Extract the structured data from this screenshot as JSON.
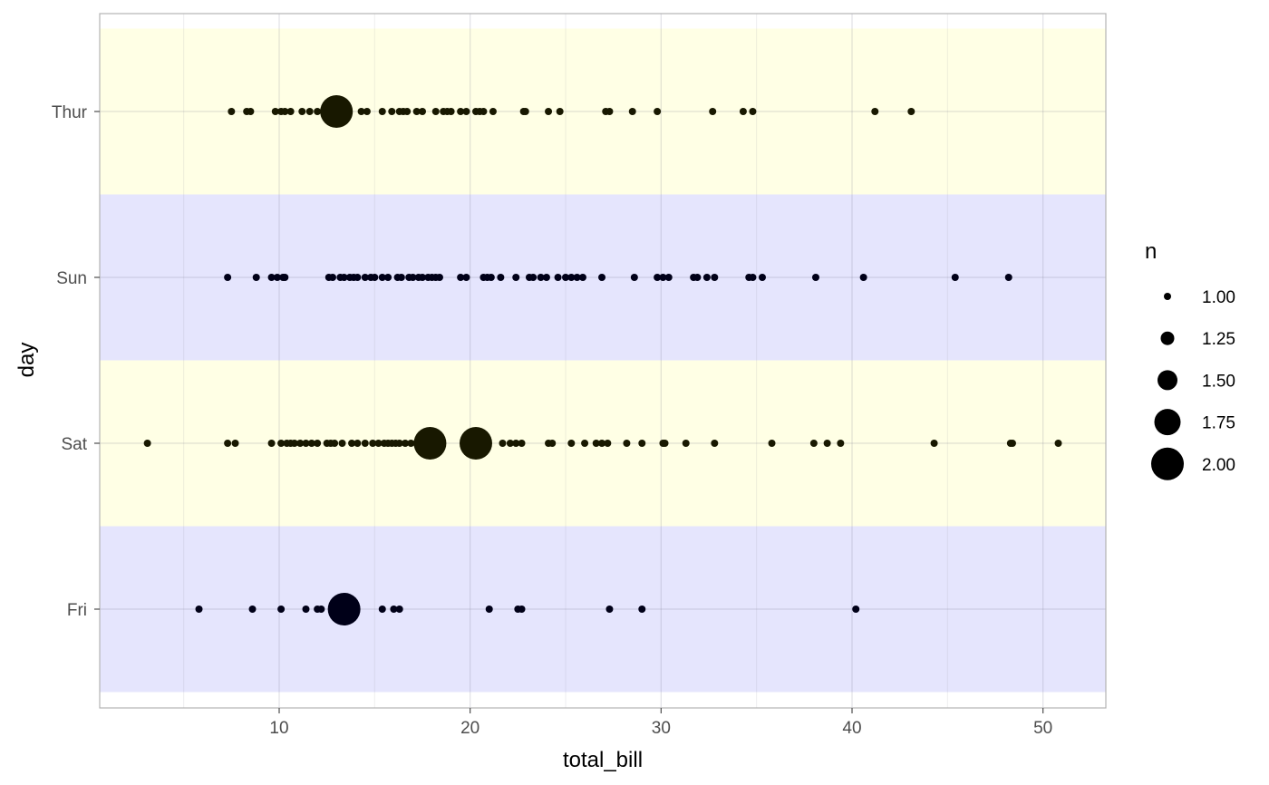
{
  "chart_data": {
    "type": "scatter",
    "xlabel": "total_bill",
    "ylabel": "day",
    "xlim": [
      0.5,
      53.3
    ],
    "x_ticks": [
      10,
      20,
      30,
      40,
      50
    ],
    "x_minor_ticks": [
      5,
      15,
      25,
      35,
      45
    ],
    "categories": [
      "Fri",
      "Sat",
      "Sun",
      "Thur"
    ],
    "band_colors": {
      "Thur": "#ffffe5",
      "Sun": "#e5e5fd",
      "Sat": "#ffffe5",
      "Fri": "#e5e5fd"
    },
    "point_colors": {
      "Thur": "#181800",
      "Sun": "#000018",
      "Sat": "#181800",
      "Fri": "#000018"
    },
    "grid": true,
    "legend": {
      "title": "n",
      "position": "right",
      "entries": [
        {
          "label": "1.00",
          "value": 1.0
        },
        {
          "label": "1.25",
          "value": 1.25
        },
        {
          "label": "1.50",
          "value": 1.5
        },
        {
          "label": "1.75",
          "value": 1.75
        },
        {
          "label": "2.00",
          "value": 2.0
        }
      ]
    },
    "series": [
      {
        "day": "Thur",
        "points": [
          {
            "x": 7.5,
            "n": 1
          },
          {
            "x": 8.3,
            "n": 1
          },
          {
            "x": 8.5,
            "n": 1
          },
          {
            "x": 9.8,
            "n": 1
          },
          {
            "x": 10.1,
            "n": 1
          },
          {
            "x": 10.3,
            "n": 1
          },
          {
            "x": 10.6,
            "n": 1
          },
          {
            "x": 11.2,
            "n": 1
          },
          {
            "x": 11.6,
            "n": 1
          },
          {
            "x": 12.0,
            "n": 1
          },
          {
            "x": 12.5,
            "n": 1
          },
          {
            "x": 13.0,
            "n": 2
          },
          {
            "x": 14.3,
            "n": 1
          },
          {
            "x": 14.6,
            "n": 1
          },
          {
            "x": 15.4,
            "n": 1
          },
          {
            "x": 15.9,
            "n": 1
          },
          {
            "x": 16.3,
            "n": 1
          },
          {
            "x": 16.5,
            "n": 1
          },
          {
            "x": 16.7,
            "n": 1
          },
          {
            "x": 17.2,
            "n": 1
          },
          {
            "x": 17.5,
            "n": 1
          },
          {
            "x": 18.2,
            "n": 1
          },
          {
            "x": 18.6,
            "n": 1
          },
          {
            "x": 18.8,
            "n": 1
          },
          {
            "x": 19.0,
            "n": 1
          },
          {
            "x": 19.5,
            "n": 1
          },
          {
            "x": 19.8,
            "n": 1
          },
          {
            "x": 20.3,
            "n": 1
          },
          {
            "x": 20.5,
            "n": 1
          },
          {
            "x": 20.7,
            "n": 1
          },
          {
            "x": 21.2,
            "n": 1
          },
          {
            "x": 22.8,
            "n": 1
          },
          {
            "x": 22.9,
            "n": 1
          },
          {
            "x": 24.1,
            "n": 1
          },
          {
            "x": 24.7,
            "n": 1
          },
          {
            "x": 27.1,
            "n": 1
          },
          {
            "x": 27.3,
            "n": 1
          },
          {
            "x": 28.5,
            "n": 1
          },
          {
            "x": 29.8,
            "n": 1
          },
          {
            "x": 32.7,
            "n": 1
          },
          {
            "x": 34.3,
            "n": 1
          },
          {
            "x": 34.8,
            "n": 1
          },
          {
            "x": 41.2,
            "n": 1
          },
          {
            "x": 43.1,
            "n": 1
          }
        ]
      },
      {
        "day": "Sun",
        "points": [
          {
            "x": 7.3,
            "n": 1
          },
          {
            "x": 8.8,
            "n": 1
          },
          {
            "x": 9.6,
            "n": 1
          },
          {
            "x": 9.9,
            "n": 1
          },
          {
            "x": 10.2,
            "n": 1
          },
          {
            "x": 10.3,
            "n": 1
          },
          {
            "x": 12.6,
            "n": 1
          },
          {
            "x": 12.8,
            "n": 1
          },
          {
            "x": 13.2,
            "n": 1
          },
          {
            "x": 13.4,
            "n": 1
          },
          {
            "x": 13.7,
            "n": 1
          },
          {
            "x": 13.9,
            "n": 1
          },
          {
            "x": 14.1,
            "n": 1
          },
          {
            "x": 14.5,
            "n": 1
          },
          {
            "x": 14.8,
            "n": 1
          },
          {
            "x": 15.0,
            "n": 1
          },
          {
            "x": 15.4,
            "n": 1
          },
          {
            "x": 15.7,
            "n": 1
          },
          {
            "x": 16.2,
            "n": 1
          },
          {
            "x": 16.4,
            "n": 1
          },
          {
            "x": 16.8,
            "n": 1
          },
          {
            "x": 17.0,
            "n": 1
          },
          {
            "x": 17.3,
            "n": 1
          },
          {
            "x": 17.5,
            "n": 1
          },
          {
            "x": 17.8,
            "n": 1
          },
          {
            "x": 18.0,
            "n": 1
          },
          {
            "x": 18.2,
            "n": 1
          },
          {
            "x": 18.4,
            "n": 1
          },
          {
            "x": 19.5,
            "n": 1
          },
          {
            "x": 19.8,
            "n": 1
          },
          {
            "x": 20.7,
            "n": 1
          },
          {
            "x": 20.9,
            "n": 1
          },
          {
            "x": 21.1,
            "n": 1
          },
          {
            "x": 21.6,
            "n": 1
          },
          {
            "x": 22.4,
            "n": 1
          },
          {
            "x": 23.1,
            "n": 1
          },
          {
            "x": 23.3,
            "n": 1
          },
          {
            "x": 23.7,
            "n": 1
          },
          {
            "x": 24.0,
            "n": 1
          },
          {
            "x": 24.6,
            "n": 1
          },
          {
            "x": 25.0,
            "n": 1
          },
          {
            "x": 25.3,
            "n": 1
          },
          {
            "x": 25.6,
            "n": 1
          },
          {
            "x": 25.9,
            "n": 1
          },
          {
            "x": 26.9,
            "n": 1
          },
          {
            "x": 28.6,
            "n": 1
          },
          {
            "x": 29.8,
            "n": 1
          },
          {
            "x": 30.1,
            "n": 1
          },
          {
            "x": 30.4,
            "n": 1
          },
          {
            "x": 31.7,
            "n": 1
          },
          {
            "x": 31.9,
            "n": 1
          },
          {
            "x": 32.4,
            "n": 1
          },
          {
            "x": 32.8,
            "n": 1
          },
          {
            "x": 34.6,
            "n": 1
          },
          {
            "x": 34.8,
            "n": 1
          },
          {
            "x": 35.3,
            "n": 1
          },
          {
            "x": 38.1,
            "n": 1
          },
          {
            "x": 40.6,
            "n": 1
          },
          {
            "x": 45.4,
            "n": 1
          },
          {
            "x": 48.2,
            "n": 1
          }
        ]
      },
      {
        "day": "Sat",
        "points": [
          {
            "x": 3.1,
            "n": 1
          },
          {
            "x": 7.3,
            "n": 1
          },
          {
            "x": 7.7,
            "n": 1
          },
          {
            "x": 9.6,
            "n": 1
          },
          {
            "x": 10.1,
            "n": 1
          },
          {
            "x": 10.4,
            "n": 1
          },
          {
            "x": 10.6,
            "n": 1
          },
          {
            "x": 10.8,
            "n": 1
          },
          {
            "x": 11.1,
            "n": 1
          },
          {
            "x": 11.4,
            "n": 1
          },
          {
            "x": 11.7,
            "n": 1
          },
          {
            "x": 12.0,
            "n": 1
          },
          {
            "x": 12.5,
            "n": 1
          },
          {
            "x": 12.7,
            "n": 1
          },
          {
            "x": 12.9,
            "n": 1
          },
          {
            "x": 13.3,
            "n": 1
          },
          {
            "x": 13.8,
            "n": 1
          },
          {
            "x": 14.1,
            "n": 1
          },
          {
            "x": 14.5,
            "n": 1
          },
          {
            "x": 14.9,
            "n": 1
          },
          {
            "x": 15.2,
            "n": 1
          },
          {
            "x": 15.5,
            "n": 1
          },
          {
            "x": 15.7,
            "n": 1
          },
          {
            "x": 15.9,
            "n": 1
          },
          {
            "x": 16.1,
            "n": 1
          },
          {
            "x": 16.3,
            "n": 1
          },
          {
            "x": 16.6,
            "n": 1
          },
          {
            "x": 16.9,
            "n": 1
          },
          {
            "x": 17.2,
            "n": 1
          },
          {
            "x": 17.5,
            "n": 1
          },
          {
            "x": 17.9,
            "n": 2
          },
          {
            "x": 18.3,
            "n": 1
          },
          {
            "x": 20.3,
            "n": 2
          },
          {
            "x": 21.7,
            "n": 1
          },
          {
            "x": 22.1,
            "n": 1
          },
          {
            "x": 22.4,
            "n": 1
          },
          {
            "x": 22.7,
            "n": 1
          },
          {
            "x": 24.1,
            "n": 1
          },
          {
            "x": 24.3,
            "n": 1
          },
          {
            "x": 25.3,
            "n": 1
          },
          {
            "x": 26.0,
            "n": 1
          },
          {
            "x": 26.6,
            "n": 1
          },
          {
            "x": 26.9,
            "n": 1
          },
          {
            "x": 27.2,
            "n": 1
          },
          {
            "x": 28.2,
            "n": 1
          },
          {
            "x": 29.0,
            "n": 1
          },
          {
            "x": 30.1,
            "n": 1
          },
          {
            "x": 30.2,
            "n": 1
          },
          {
            "x": 31.3,
            "n": 1
          },
          {
            "x": 32.8,
            "n": 1
          },
          {
            "x": 35.8,
            "n": 1
          },
          {
            "x": 38.0,
            "n": 1
          },
          {
            "x": 38.7,
            "n": 1
          },
          {
            "x": 39.4,
            "n": 1
          },
          {
            "x": 44.3,
            "n": 1
          },
          {
            "x": 48.3,
            "n": 1
          },
          {
            "x": 48.4,
            "n": 1
          },
          {
            "x": 50.8,
            "n": 1
          }
        ]
      },
      {
        "day": "Fri",
        "points": [
          {
            "x": 5.8,
            "n": 1
          },
          {
            "x": 8.6,
            "n": 1
          },
          {
            "x": 10.1,
            "n": 1
          },
          {
            "x": 11.4,
            "n": 1
          },
          {
            "x": 12.0,
            "n": 1
          },
          {
            "x": 12.2,
            "n": 1
          },
          {
            "x": 13.4,
            "n": 2
          },
          {
            "x": 15.4,
            "n": 1
          },
          {
            "x": 16.0,
            "n": 1
          },
          {
            "x": 16.3,
            "n": 1
          },
          {
            "x": 21.0,
            "n": 1
          },
          {
            "x": 22.5,
            "n": 1
          },
          {
            "x": 22.7,
            "n": 1
          },
          {
            "x": 27.3,
            "n": 1
          },
          {
            "x": 29.0,
            "n": 1
          },
          {
            "x": 40.2,
            "n": 1
          }
        ]
      }
    ]
  }
}
